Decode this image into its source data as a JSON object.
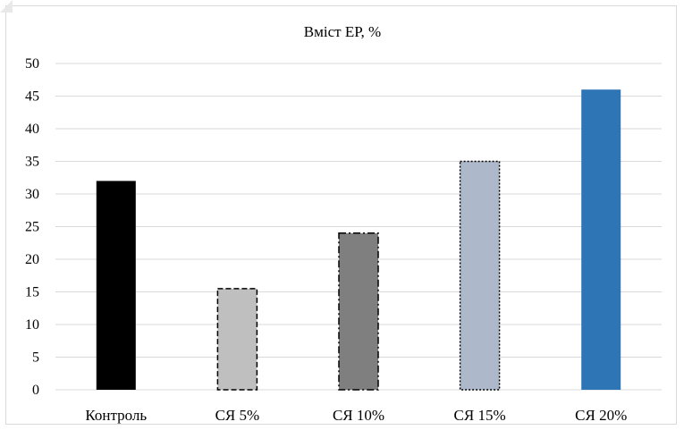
{
  "chart_data": {
    "type": "bar",
    "title": "Вміст ЕР, %",
    "xlabel": "",
    "ylabel": "",
    "categories": [
      "Контроль",
      "СЯ 5%",
      "СЯ 10%",
      "СЯ 15%",
      "СЯ 20%"
    ],
    "values": [
      32,
      15.5,
      24,
      35,
      46
    ],
    "ylim": [
      0,
      50
    ],
    "yticks": [
      "0",
      "5",
      "10",
      "15",
      "20",
      "25",
      "30",
      "35",
      "40",
      "45",
      "50"
    ],
    "grid": true,
    "legend": "none",
    "bar_colors": [
      "#000000",
      "#bfbfbf",
      "#7f7f7f",
      "#adb9ca",
      "#2e75b6"
    ],
    "bar_borders": [
      "none",
      "dashed",
      "dash-dot",
      "dotted",
      "none"
    ]
  }
}
